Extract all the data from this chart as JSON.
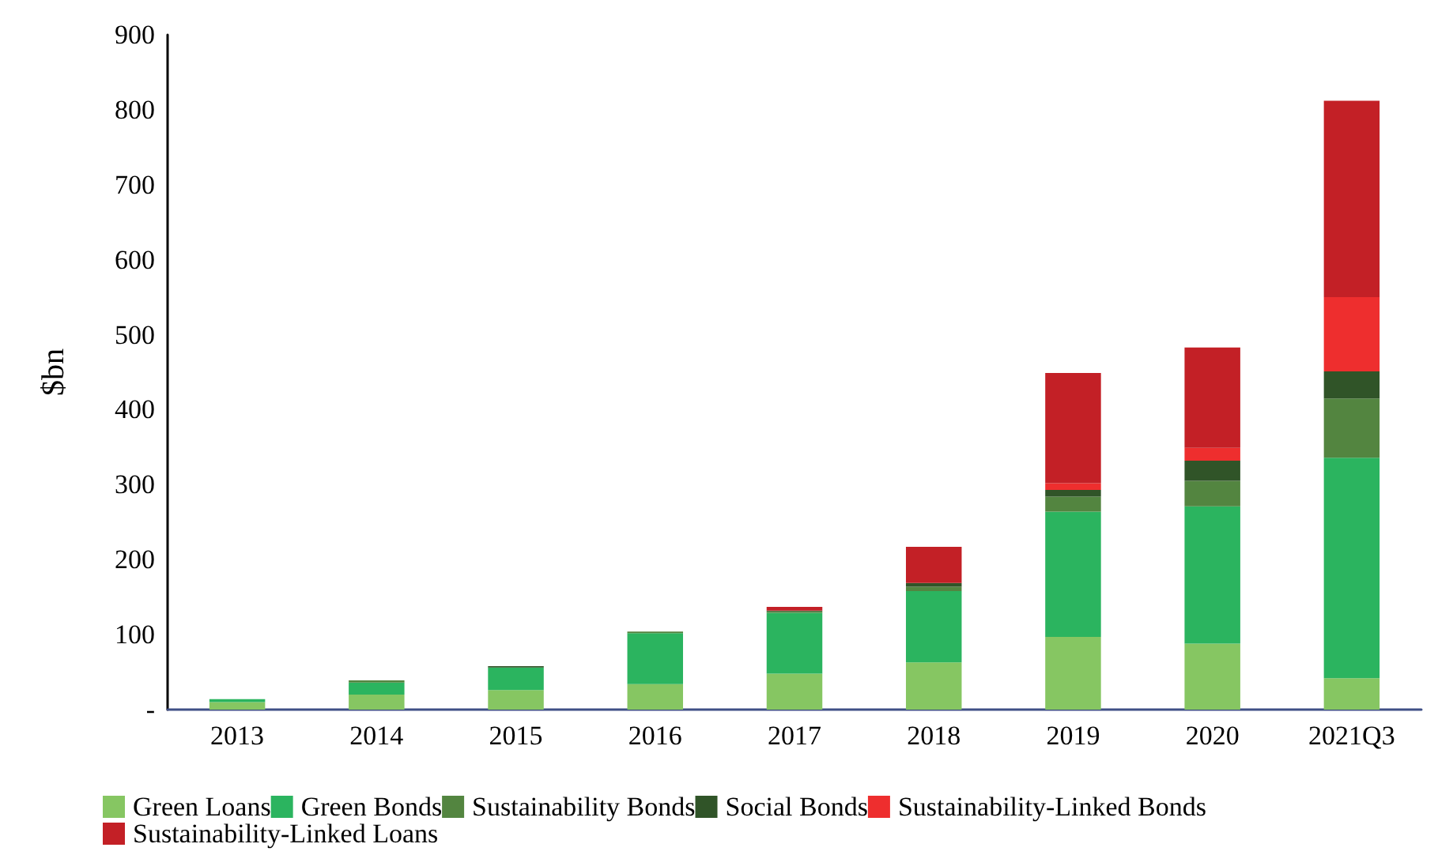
{
  "chart_data": {
    "type": "bar",
    "stacked": true,
    "ylabel": "$bn",
    "categories": [
      "2013",
      "2014",
      "2015",
      "2016",
      "2017",
      "2018",
      "2019",
      "2020",
      "2021Q3"
    ],
    "series": [
      {
        "name": "Green Loans",
        "color": "#86c662",
        "values": [
          10,
          20,
          26,
          34,
          48,
          63,
          97,
          88,
          42
        ]
      },
      {
        "name": "Green Bonds",
        "color": "#2bb45f",
        "values": [
          4,
          16,
          30,
          68,
          81,
          95,
          167,
          183,
          294
        ]
      },
      {
        "name": "Sustainability Bonds",
        "color": "#538540",
        "values": [
          0,
          3,
          0,
          2,
          2,
          6,
          20,
          34,
          79
        ]
      },
      {
        "name": "Social Bonds",
        "color": "#305428",
        "values": [
          0,
          0,
          2,
          0,
          1,
          5,
          9,
          27,
          36
        ]
      },
      {
        "name": "Sustainability-Linked Bonds",
        "color": "#ee2e2e",
        "values": [
          0,
          0,
          0,
          0,
          0,
          0,
          9,
          17,
          99
        ]
      },
      {
        "name": "Sustainability-Linked Loans",
        "color": "#c32026",
        "values": [
          0,
          0,
          0,
          0,
          5,
          48,
          147,
          134,
          262
        ]
      }
    ],
    "ylim": [
      0,
      900
    ],
    "yticks": [
      {
        "value": 0,
        "label": "-"
      },
      100,
      200,
      300,
      400,
      500,
      600,
      700,
      800,
      900
    ],
    "grid": false,
    "legend": "bottom"
  }
}
